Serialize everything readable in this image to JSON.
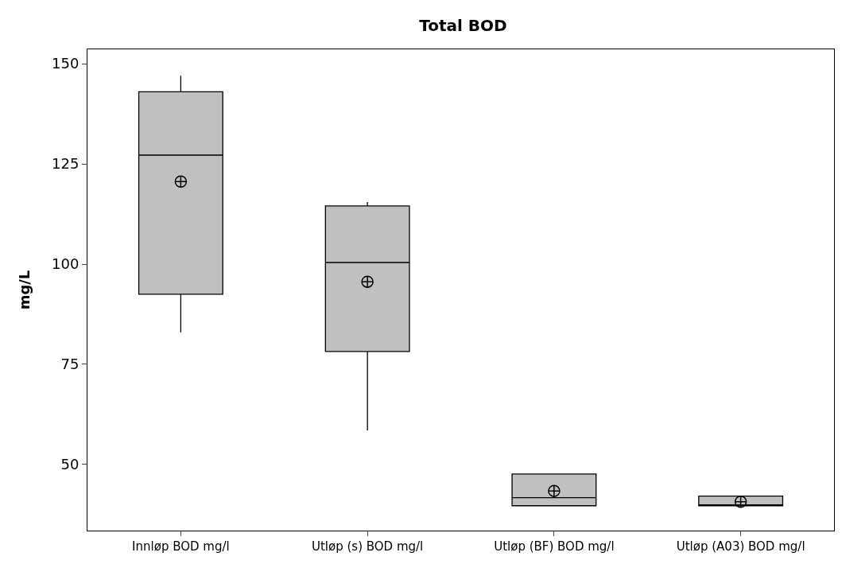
{
  "chart_data": {
    "type": "box",
    "title": "Total BOD",
    "ylabel": "mg/L",
    "categories": [
      "Innløp BOD mg/l",
      "Utløp (s) BOD mg/l",
      "Utløp (BF) BOD mg/l",
      "Utløp (A03) BOD mg/l"
    ],
    "boxes": [
      {
        "low": 83,
        "q1": 92.5,
        "median": 127.2,
        "q3": 143,
        "high": 147,
        "mean": 120.6
      },
      {
        "low": 58.5,
        "q1": 78.2,
        "median": 100.4,
        "q3": 114.5,
        "high": 115.5,
        "mean": 95.6
      },
      {
        "low": 39.7,
        "q1": 39.7,
        "median": 41.7,
        "q3": 47.6,
        "high": 47.6,
        "mean": 43.4
      },
      {
        "low": 39.7,
        "q1": 39.7,
        "median": 39.7,
        "q3": 42.1,
        "high": 42.1,
        "mean": 40.7
      }
    ],
    "color": "#c0c0c0",
    "ylim": [
      33.5,
      153.6
    ],
    "yticks": [
      50,
      75,
      100,
      125,
      150
    ],
    "grid": false
  }
}
